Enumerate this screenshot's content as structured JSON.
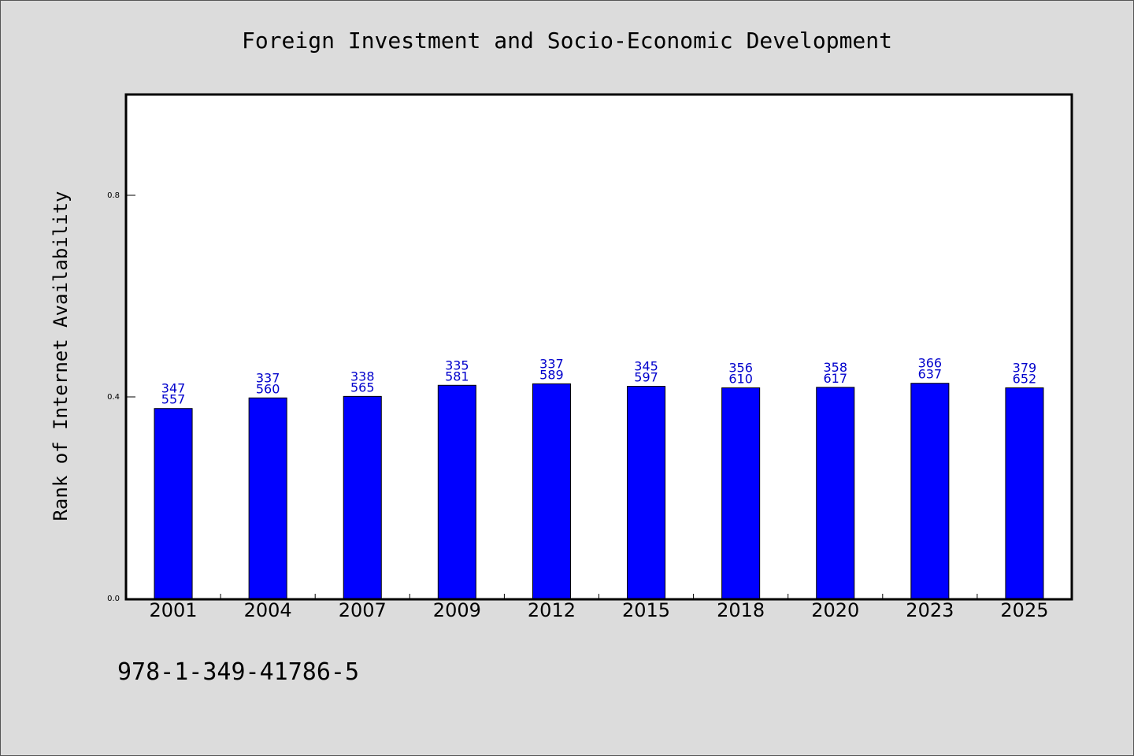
{
  "chart_data": {
    "type": "bar",
    "title": "Foreign Investment and Socio-Economic Development",
    "xlabel": "",
    "ylabel": "Rank of Internet Availability",
    "categories": [
      "2001",
      "2004",
      "2007",
      "2009",
      "2012",
      "2015",
      "2018",
      "2020",
      "2023",
      "2025"
    ],
    "values": [
      0.377,
      0.398,
      0.401,
      0.423,
      0.426,
      0.421,
      0.418,
      0.419,
      0.427,
      0.418
    ],
    "bar_labels_top": [
      "347",
      "337",
      "338",
      "335",
      "337",
      "345",
      "356",
      "358",
      "366",
      "379"
    ],
    "bar_labels_bottom": [
      "557",
      "560",
      "565",
      "581",
      "589",
      "597",
      "610",
      "617",
      "637",
      "652"
    ],
    "yticks": [
      "0.0",
      "0.4",
      "0.8"
    ],
    "ytick_values": [
      0.0,
      0.4,
      0.8
    ],
    "ylim": [
      0,
      1.0
    ],
    "grid": false,
    "colors": {
      "bar": "#0000ff",
      "data_label": "#0000cc",
      "background": "#dcdcdc",
      "plot_background": "#ffffff"
    }
  },
  "footer": {
    "isbn": "978-1-349-41786-5"
  }
}
